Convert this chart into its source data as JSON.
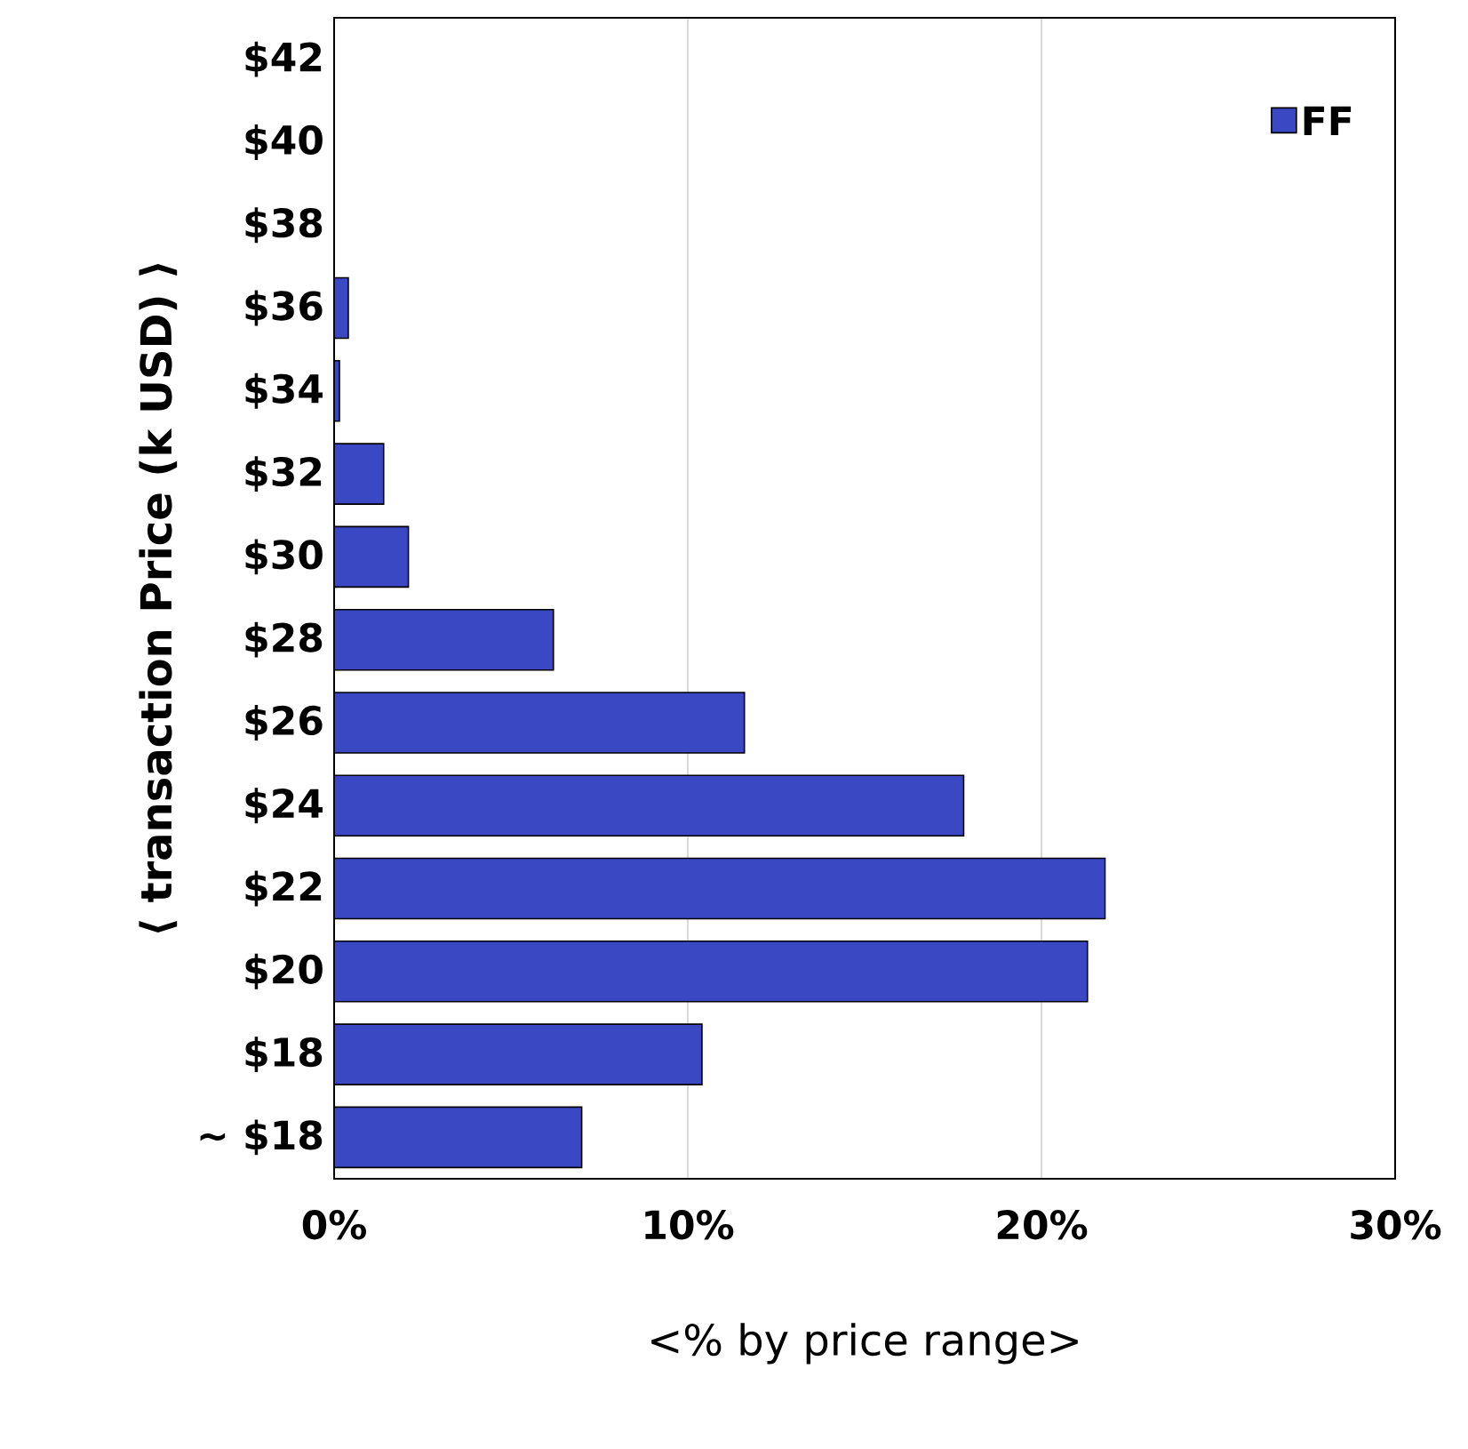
{
  "chart_data": {
    "type": "bar",
    "orientation": "horizontal",
    "categories": [
      "$42",
      "$40",
      "$38",
      "$36",
      "$34",
      "$32",
      "$30",
      "$28",
      "$26",
      "$24",
      "$22",
      "$20",
      "$18",
      "~ $18"
    ],
    "series": [
      {
        "name": "FF",
        "color": "#3a48c4",
        "values": [
          0,
          0,
          0,
          0.4,
          0.15,
          1.4,
          2.1,
          6.2,
          11.6,
          17.8,
          21.8,
          21.3,
          10.4,
          7.0
        ]
      }
    ],
    "xlim": [
      0,
      30
    ],
    "xticks": [
      {
        "value": 0,
        "label": "0%"
      },
      {
        "value": 10,
        "label": "10%"
      },
      {
        "value": 20,
        "label": "20%"
      },
      {
        "value": 30,
        "label": "30%"
      }
    ],
    "xlabel": "<% by price range>",
    "ylabel": "⟨ transaction Price (k USD) ⟩",
    "grid": "x",
    "legend": "top right"
  }
}
